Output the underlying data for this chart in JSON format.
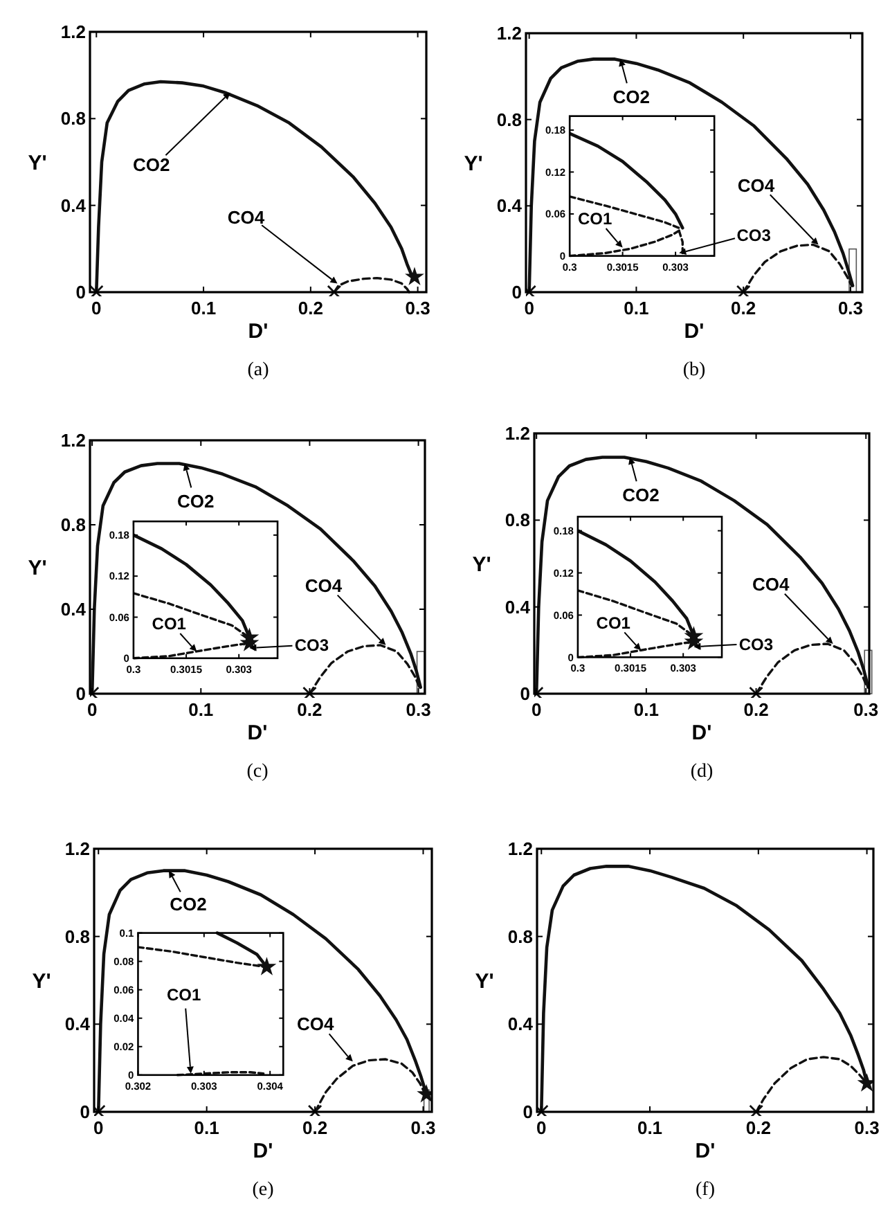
{
  "chart_data": [
    {
      "type": "line",
      "title": "(a)",
      "xlabel": "D'",
      "ylabel": "Y'",
      "xlim": [
        -0.006,
        0.308
      ],
      "ylim": [
        0,
        1.2
      ],
      "xticks": [
        0,
        0.1,
        0.2,
        0.3
      ],
      "yticks": [
        0,
        0.4,
        0.8,
        1.2
      ],
      "series": [
        {
          "type": "line",
          "line_style": "solid",
          "marker": "none",
          "color": "#111111",
          "x": [
            0,
            0.002,
            0.005,
            0.01,
            0.02,
            0.03,
            0.045,
            0.06,
            0.08,
            0.1,
            0.12,
            0.15,
            0.18,
            0.21,
            0.24,
            0.26,
            0.275,
            0.285,
            0.29,
            0.295
          ],
          "values": [
            0,
            0.3,
            0.6,
            0.78,
            0.88,
            0.93,
            0.96,
            0.97,
            0.965,
            0.95,
            0.92,
            0.86,
            0.78,
            0.67,
            0.53,
            0.41,
            0.3,
            0.2,
            0.13,
            0.07
          ]
        },
        {
          "type": "line",
          "line_style": "dashed",
          "marker": "none",
          "color": "#111111",
          "x": [
            0.222,
            0.226,
            0.235,
            0.25,
            0.262,
            0.275,
            0.285,
            0.29,
            0.292
          ],
          "values": [
            0,
            0.03,
            0.05,
            0.062,
            0.065,
            0.058,
            0.04,
            0.015,
            0
          ]
        },
        {
          "type": "scatter",
          "marker": "cross",
          "color": "#111111",
          "x": [
            0,
            0.222
          ],
          "values": [
            0,
            0
          ]
        },
        {
          "type": "scatter",
          "marker": "star",
          "color": "#111111",
          "x": [
            0.297
          ],
          "values": [
            0.07
          ]
        }
      ],
      "annotations": [
        {
          "text": "CO2",
          "x": 0.125,
          "y": 0.92
        },
        {
          "text": "CO4",
          "x": 0.225,
          "y": 0.04
        }
      ]
    },
    {
      "type": "line",
      "title": "(b)",
      "xlabel": "D'",
      "ylabel": "Y'",
      "xlim": [
        -0.003,
        0.311
      ],
      "ylim": [
        0,
        1.2
      ],
      "xticks": [
        0,
        0.1,
        0.2,
        0.3
      ],
      "yticks": [
        0,
        0.4,
        0.8,
        1.2
      ],
      "series": [
        {
          "type": "line",
          "line_style": "solid",
          "marker": "none",
          "color": "#111111",
          "x": [
            0,
            0.002,
            0.005,
            0.01,
            0.02,
            0.03,
            0.045,
            0.06,
            0.08,
            0.1,
            0.12,
            0.15,
            0.18,
            0.21,
            0.24,
            0.26,
            0.275,
            0.285,
            0.293,
            0.298,
            0.302
          ],
          "values": [
            0,
            0.4,
            0.7,
            0.88,
            0.99,
            1.04,
            1.07,
            1.08,
            1.08,
            1.06,
            1.03,
            0.97,
            0.88,
            0.77,
            0.62,
            0.5,
            0.38,
            0.28,
            0.18,
            0.1,
            0.03
          ]
        },
        {
          "type": "line",
          "line_style": "dashed",
          "marker": "none",
          "color": "#111111",
          "x": [
            0.2,
            0.21,
            0.22,
            0.235,
            0.25,
            0.265,
            0.28,
            0.29,
            0.297,
            0.301
          ],
          "values": [
            0,
            0.08,
            0.14,
            0.19,
            0.215,
            0.22,
            0.19,
            0.13,
            0.07,
            0.03
          ]
        },
        {
          "type": "scatter",
          "marker": "cross",
          "color": "#111111",
          "x": [
            0,
            0.2
          ],
          "values": [
            0,
            0
          ]
        }
      ],
      "annotations": [
        {
          "text": "CO2",
          "x": 0.085,
          "y": 1.08
        },
        {
          "text": "CO4",
          "x": 0.27,
          "y": 0.22
        }
      ]
    },
    {
      "type": "line",
      "title": "(c)",
      "xlabel": "D'",
      "ylabel": "Y'",
      "xlim": [
        -0.002,
        0.306
      ],
      "ylim": [
        0,
        1.2
      ],
      "xticks": [
        0,
        0.1,
        0.2,
        0.3
      ],
      "yticks": [
        0,
        0.4,
        0.8,
        1.2
      ],
      "series": [
        {
          "type": "line",
          "line_style": "solid",
          "marker": "none",
          "color": "#111111",
          "x": [
            0,
            0.002,
            0.005,
            0.01,
            0.02,
            0.03,
            0.045,
            0.06,
            0.08,
            0.1,
            0.12,
            0.15,
            0.18,
            0.21,
            0.24,
            0.26,
            0.275,
            0.285,
            0.293,
            0.298,
            0.302
          ],
          "values": [
            0,
            0.4,
            0.7,
            0.89,
            1.0,
            1.05,
            1.08,
            1.09,
            1.09,
            1.07,
            1.04,
            0.98,
            0.89,
            0.78,
            0.63,
            0.51,
            0.39,
            0.29,
            0.19,
            0.11,
            0.03
          ]
        },
        {
          "type": "line",
          "line_style": "dashed",
          "marker": "none",
          "color": "#111111",
          "x": [
            0.2,
            0.21,
            0.22,
            0.235,
            0.25,
            0.265,
            0.28,
            0.29,
            0.297,
            0.301
          ],
          "values": [
            0,
            0.08,
            0.145,
            0.2,
            0.225,
            0.23,
            0.2,
            0.14,
            0.08,
            0.03
          ]
        },
        {
          "type": "scatter",
          "marker": "cross",
          "color": "#111111",
          "x": [
            0,
            0.2
          ],
          "values": [
            0,
            0
          ]
        }
      ],
      "annotations": [
        {
          "text": "CO2",
          "x": 0.085,
          "y": 1.09
        },
        {
          "text": "CO4",
          "x": 0.27,
          "y": 0.23
        }
      ]
    },
    {
      "type": "line",
      "title": "(d)",
      "xlabel": "D'",
      "ylabel": "Y'",
      "xlim": [
        -0.002,
        0.303
      ],
      "ylim": [
        0,
        1.2
      ],
      "xticks": [
        0,
        0.1,
        0.2,
        0.3
      ],
      "yticks": [
        0,
        0.4,
        0.8,
        1.2
      ],
      "series": [
        {
          "type": "line",
          "line_style": "solid",
          "marker": "none",
          "color": "#111111",
          "x": [
            0,
            0.002,
            0.005,
            0.01,
            0.02,
            0.03,
            0.045,
            0.06,
            0.08,
            0.1,
            0.12,
            0.15,
            0.18,
            0.21,
            0.24,
            0.26,
            0.275,
            0.285,
            0.293,
            0.298,
            0.302
          ],
          "values": [
            0,
            0.4,
            0.7,
            0.89,
            1.0,
            1.05,
            1.08,
            1.09,
            1.09,
            1.07,
            1.04,
            0.98,
            0.89,
            0.78,
            0.63,
            0.51,
            0.39,
            0.29,
            0.19,
            0.11,
            0.03
          ]
        },
        {
          "type": "line",
          "line_style": "dashed",
          "marker": "none",
          "color": "#111111",
          "x": [
            0.2,
            0.21,
            0.22,
            0.235,
            0.25,
            0.265,
            0.28,
            0.29,
            0.297,
            0.301
          ],
          "values": [
            0,
            0.08,
            0.145,
            0.2,
            0.225,
            0.23,
            0.2,
            0.14,
            0.08,
            0.03
          ]
        },
        {
          "type": "scatter",
          "marker": "cross",
          "color": "#111111",
          "x": [
            0,
            0.2
          ],
          "values": [
            0,
            0
          ]
        }
      ],
      "annotations": [
        {
          "text": "CO2",
          "x": 0.085,
          "y": 1.09
        },
        {
          "text": "CO4",
          "x": 0.27,
          "y": 0.23
        }
      ]
    },
    {
      "type": "line",
      "title": "(e)",
      "xlabel": "D'",
      "ylabel": "Y'",
      "xlim": [
        -0.004,
        0.308
      ],
      "ylim": [
        0,
        1.2
      ],
      "xticks": [
        0,
        0.1,
        0.2,
        0.3
      ],
      "yticks": [
        0,
        0.4,
        0.8,
        1.2
      ],
      "series": [
        {
          "type": "line",
          "line_style": "solid",
          "marker": "none",
          "color": "#111111",
          "x": [
            0,
            0.002,
            0.005,
            0.01,
            0.02,
            0.03,
            0.045,
            0.06,
            0.08,
            0.1,
            0.12,
            0.15,
            0.18,
            0.21,
            0.24,
            0.26,
            0.275,
            0.285,
            0.293,
            0.298,
            0.303
          ],
          "values": [
            0,
            0.4,
            0.72,
            0.9,
            1.01,
            1.06,
            1.09,
            1.1,
            1.1,
            1.08,
            1.05,
            0.99,
            0.9,
            0.79,
            0.65,
            0.53,
            0.42,
            0.33,
            0.23,
            0.16,
            0.08
          ]
        },
        {
          "type": "line",
          "line_style": "dashed",
          "marker": "none",
          "color": "#111111",
          "x": [
            0.2,
            0.21,
            0.22,
            0.235,
            0.25,
            0.265,
            0.28,
            0.29,
            0.297,
            0.302
          ],
          "values": [
            0,
            0.09,
            0.15,
            0.21,
            0.235,
            0.24,
            0.22,
            0.18,
            0.13,
            0.08
          ]
        },
        {
          "type": "scatter",
          "marker": "cross",
          "color": "#111111",
          "x": [
            0,
            0.2
          ],
          "values": [
            0,
            0
          ]
        },
        {
          "type": "scatter",
          "marker": "star",
          "color": "#111111",
          "x": [
            0.303
          ],
          "values": [
            0.08
          ]
        }
      ],
      "annotations": [
        {
          "text": "CO2",
          "x": 0.065,
          "y": 1.1
        },
        {
          "text": "CO4",
          "x": 0.235,
          "y": 0.23
        }
      ]
    },
    {
      "type": "line",
      "title": "(f)",
      "xlabel": "D'",
      "ylabel": "Y'",
      "xlim": [
        -0.004,
        0.306
      ],
      "ylim": [
        0,
        1.2
      ],
      "xticks": [
        0,
        0.1,
        0.2,
        0.3
      ],
      "yticks": [
        0,
        0.4,
        0.8,
        1.2
      ],
      "series": [
        {
          "type": "line",
          "line_style": "solid",
          "marker": "none",
          "color": "#111111",
          "x": [
            0,
            0.002,
            0.005,
            0.01,
            0.02,
            0.03,
            0.045,
            0.06,
            0.08,
            0.1,
            0.12,
            0.15,
            0.18,
            0.21,
            0.24,
            0.26,
            0.275,
            0.285,
            0.292,
            0.297,
            0.3
          ],
          "values": [
            0,
            0.45,
            0.75,
            0.92,
            1.03,
            1.08,
            1.11,
            1.12,
            1.12,
            1.1,
            1.07,
            1.02,
            0.94,
            0.83,
            0.69,
            0.56,
            0.45,
            0.35,
            0.26,
            0.19,
            0.13
          ]
        },
        {
          "type": "line",
          "line_style": "dashed",
          "marker": "none",
          "color": "#111111",
          "x": [
            0.198,
            0.205,
            0.215,
            0.23,
            0.245,
            0.26,
            0.275,
            0.285,
            0.293,
            0.3
          ],
          "values": [
            0,
            0.06,
            0.13,
            0.2,
            0.24,
            0.25,
            0.24,
            0.21,
            0.17,
            0.13
          ]
        },
        {
          "type": "scatter",
          "marker": "cross",
          "color": "#111111",
          "x": [
            0,
            0.198
          ],
          "values": [
            0,
            0
          ]
        },
        {
          "type": "scatter",
          "marker": "star",
          "color": "#111111",
          "x": [
            0.3
          ],
          "values": [
            0.13
          ]
        }
      ]
    },
    {
      "type": "line",
      "xlim": [
        0.3,
        0.3041
      ],
      "ylim": [
        0,
        0.2
      ],
      "xticks": [
        0.3,
        0.3015,
        0.303
      ],
      "yticks": [
        0,
        0.06,
        0.12,
        0.18
      ],
      "series": [
        {
          "type": "line",
          "line_style": "solid",
          "marker": "none",
          "color": "#111111",
          "x": [
            0.3,
            0.3008,
            0.3015,
            0.3022,
            0.3027,
            0.303,
            0.3032
          ],
          "values": [
            0.175,
            0.157,
            0.135,
            0.105,
            0.08,
            0.06,
            0.04
          ]
        },
        {
          "type": "line",
          "line_style": "dashed",
          "marker": "none",
          "color": "#111111",
          "x": [
            0.3,
            0.301,
            0.302,
            0.3027,
            0.3031
          ],
          "values": [
            0.085,
            0.072,
            0.058,
            0.048,
            0.04
          ]
        },
        {
          "type": "line",
          "line_style": "dashed",
          "marker": "none",
          "color": "#111111",
          "x": [
            0.3,
            0.301,
            0.3017,
            0.3024,
            0.3029,
            0.3031
          ],
          "values": [
            0,
            0.004,
            0.01,
            0.02,
            0.03,
            0.036
          ]
        },
        {
          "type": "line",
          "line_style": "dashed",
          "marker": "none",
          "color": "#111111",
          "x": [
            0.3031,
            0.3032,
            0.3032
          ],
          "values": [
            0.036,
            0.02,
            0.004
          ]
        }
      ],
      "annotations": [
        {
          "text": "CO1",
          "x": 0.3015,
          "y": 0.012
        },
        {
          "text": "CO3",
          "x": 0.3031,
          "y": 0.004
        }
      ]
    },
    {
      "type": "line",
      "xlim": [
        0.3,
        0.3041
      ],
      "ylim": [
        0,
        0.2
      ],
      "xticks": [
        0.3,
        0.3015,
        0.303
      ],
      "yticks": [
        0,
        0.06,
        0.12,
        0.18
      ],
      "series": [
        {
          "type": "line",
          "line_style": "solid",
          "marker": "none",
          "color": "#111111",
          "x": [
            0.3,
            0.3008,
            0.3015,
            0.3022,
            0.3027,
            0.3031,
            0.3033
          ],
          "values": [
            0.18,
            0.16,
            0.137,
            0.107,
            0.08,
            0.055,
            0.03
          ]
        },
        {
          "type": "line",
          "line_style": "dashed",
          "marker": "none",
          "color": "#111111",
          "x": [
            0.3,
            0.301,
            0.302,
            0.3028,
            0.3033
          ],
          "values": [
            0.095,
            0.08,
            0.062,
            0.048,
            0.03
          ]
        },
        {
          "type": "line",
          "line_style": "dashed",
          "marker": "none",
          "color": "#111111",
          "x": [
            0.3,
            0.301,
            0.3018,
            0.3025,
            0.303,
            0.3033
          ],
          "values": [
            0,
            0.003,
            0.01,
            0.016,
            0.02,
            0.022
          ]
        },
        {
          "type": "scatter",
          "marker": "star",
          "color": "#111111",
          "x": [
            0.3033,
            0.3033
          ],
          "values": [
            0.03,
            0.022
          ]
        }
      ],
      "annotations": [
        {
          "text": "CO1",
          "x": 0.3018,
          "y": 0.01
        },
        {
          "text": "CO3",
          "x": 0.3033,
          "y": 0.015
        }
      ]
    },
    {
      "type": "line",
      "xlim": [
        0.3,
        0.3041
      ],
      "ylim": [
        0,
        0.2
      ],
      "xticks": [
        0.3,
        0.3015,
        0.303
      ],
      "yticks": [
        0,
        0.06,
        0.12,
        0.18
      ],
      "series": [
        {
          "type": "line",
          "line_style": "solid",
          "marker": "none",
          "color": "#111111",
          "x": [
            0.3,
            0.3008,
            0.3015,
            0.3022,
            0.3027,
            0.3031,
            0.3033
          ],
          "values": [
            0.18,
            0.16,
            0.137,
            0.107,
            0.08,
            0.055,
            0.03
          ]
        },
        {
          "type": "line",
          "line_style": "dashed",
          "marker": "none",
          "color": "#111111",
          "x": [
            0.3,
            0.301,
            0.302,
            0.3028,
            0.3033
          ],
          "values": [
            0.095,
            0.08,
            0.062,
            0.048,
            0.03
          ]
        },
        {
          "type": "line",
          "line_style": "dashed",
          "marker": "none",
          "color": "#111111",
          "x": [
            0.3,
            0.301,
            0.3018,
            0.3025,
            0.303,
            0.3033
          ],
          "values": [
            0,
            0.003,
            0.01,
            0.016,
            0.02,
            0.022
          ]
        },
        {
          "type": "scatter",
          "marker": "star",
          "color": "#111111",
          "x": [
            0.3033,
            0.3033
          ],
          "values": [
            0.03,
            0.022
          ]
        }
      ],
      "annotations": [
        {
          "text": "CO1",
          "x": 0.3018,
          "y": 0.01
        },
        {
          "text": "CO3",
          "x": 0.3033,
          "y": 0.015
        }
      ]
    },
    {
      "type": "line",
      "xlim": [
        0.302,
        0.3042
      ],
      "ylim": [
        0,
        0.1
      ],
      "xticks": [
        0.302,
        0.303,
        0.304
      ],
      "yticks": [
        0,
        0.02,
        0.04,
        0.06,
        0.08,
        0.1
      ],
      "series": [
        {
          "type": "line",
          "line_style": "solid",
          "marker": "none",
          "color": "#111111",
          "x": [
            0.3032,
            0.3035,
            0.3038,
            0.30395
          ],
          "values": [
            0.1,
            0.093,
            0.085,
            0.076
          ]
        },
        {
          "type": "line",
          "line_style": "dashed",
          "marker": "none",
          "color": "#111111",
          "x": [
            0.302,
            0.3025,
            0.303,
            0.3035,
            0.30395
          ],
          "values": [
            0.09,
            0.087,
            0.083,
            0.079,
            0.076
          ]
        },
        {
          "type": "line",
          "line_style": "dashed",
          "marker": "none",
          "color": "#111111",
          "x": [
            0.3026,
            0.303,
            0.3034,
            0.3037,
            0.3039
          ],
          "values": [
            0,
            0.001,
            0.002,
            0.002,
            0.001
          ]
        },
        {
          "type": "scatter",
          "marker": "star",
          "color": "#111111",
          "x": [
            0.30395
          ],
          "values": [
            0.076
          ]
        }
      ],
      "annotations": [
        {
          "text": "CO1",
          "x": 0.3028,
          "y": 0.001
        }
      ]
    }
  ]
}
